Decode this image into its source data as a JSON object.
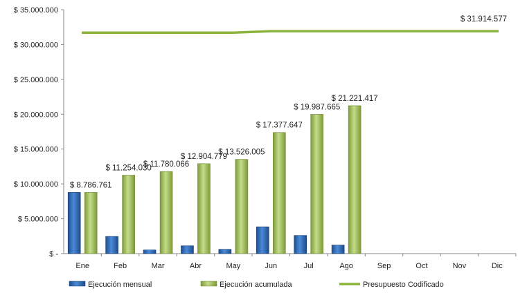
{
  "chart_data": {
    "type": "bar",
    "categories": [
      "Ene",
      "Feb",
      "Mar",
      "Abr",
      "May",
      "Jun",
      "Jul",
      "Ago",
      "Sep",
      "Oct",
      "Nov",
      "Dic"
    ],
    "series": [
      {
        "name": "Ejecución mensual",
        "type": "bar",
        "color": "#2e6fbf",
        "values": [
          8786761,
          2467269,
          526036,
          1124713,
          621226,
          3851642,
          2610018,
          1233752,
          null,
          null,
          null,
          null
        ]
      },
      {
        "name": "Ejecución acumulada",
        "type": "bar",
        "color": "#9bbb59",
        "values": [
          8786761,
          11254030,
          11780066,
          12904779,
          13526005,
          17377647,
          19987665,
          21221417,
          null,
          null,
          null,
          null
        ]
      },
      {
        "name": "Presupuesto Codificado",
        "type": "line",
        "color": "#8cb43c",
        "values": [
          31700000,
          31700000,
          31700000,
          31700000,
          31700000,
          31914577,
          31914577,
          31914577,
          31914577,
          31914577,
          31914577,
          31914577
        ]
      }
    ],
    "y_ticks": [
      0,
      5000000,
      10000000,
      15000000,
      20000000,
      25000000,
      30000000,
      35000000
    ],
    "y_tick_labels": [
      "$ -",
      "$ 5.000.000",
      "$ 10.000.000",
      "$ 15.000.000",
      "$ 20.000.000",
      "$ 25.000.000",
      "$ 30.000.000",
      "$ 35.000.000"
    ],
    "ylim": [
      0,
      35000000
    ],
    "data_labels": [
      "$ 8.786.761",
      "$ 11.254.030",
      "$ 11.780.066",
      "$ 12.904.779",
      "$ 13.526.005",
      "$ 17.377.647",
      "$ 19.987.665",
      "$ 21.221.417"
    ],
    "line_end_label": "$ 31.914.577",
    "legend": {
      "position": "bottom",
      "entries": [
        "Ejecución mensual",
        "Ejecución acumulada",
        "Presupuesto Codificado"
      ]
    },
    "grid": false,
    "title": "",
    "xlabel": "",
    "ylabel": ""
  }
}
